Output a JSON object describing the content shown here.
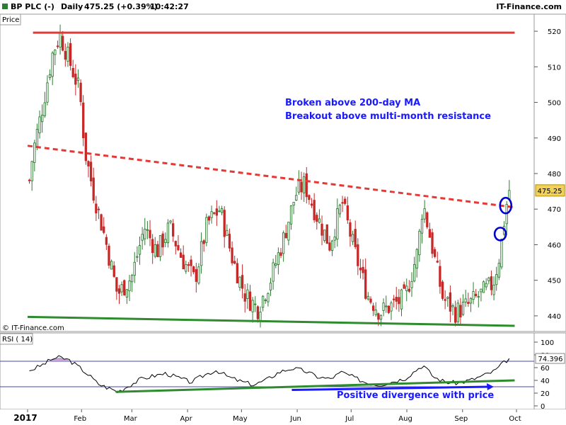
{
  "header": {
    "symbol": "BP PLC (-)",
    "period": "Daily",
    "quote": "475.25 (+0.39%)",
    "time": "10:42:27",
    "brand": "IT-Finance.com"
  },
  "colors": {
    "up_candle": "#2e7d32",
    "down_candle": "#c62828",
    "resistance_line": "#e53935",
    "support_line": "#2e8b2e",
    "annotation_text": "#1a1aff",
    "rsi_line": "#000000",
    "rsi_overbought_fill": "#c4a3d2"
  },
  "chart_data": [
    {
      "type": "candlestick",
      "title": "Price",
      "watermark": "© IT-Finance.com",
      "current_price_label": "475.25",
      "ylim": [
        436,
        524
      ],
      "yticks": [
        440,
        450,
        460,
        470,
        480,
        490,
        500,
        510,
        520
      ],
      "x_month_labels": [
        "2017",
        "Feb",
        "Mar",
        "Apr",
        "May",
        "Jun",
        "Jul",
        "Aug",
        "Sep",
        "Oct"
      ],
      "series_close_approx": [
        {
          "x": "2017-01-03",
          "y": 478
        },
        {
          "x": "2017-01-05",
          "y": 486
        },
        {
          "x": "2017-01-10",
          "y": 498
        },
        {
          "x": "2017-01-16",
          "y": 514
        },
        {
          "x": "2017-01-20",
          "y": 519
        },
        {
          "x": "2017-01-25",
          "y": 512
        },
        {
          "x": "2017-01-31",
          "y": 503
        },
        {
          "x": "2017-02-03",
          "y": 486
        },
        {
          "x": "2017-02-08",
          "y": 474
        },
        {
          "x": "2017-02-14",
          "y": 462
        },
        {
          "x": "2017-02-21",
          "y": 446
        },
        {
          "x": "2017-03-01",
          "y": 451
        },
        {
          "x": "2017-03-08",
          "y": 465
        },
        {
          "x": "2017-03-15",
          "y": 458
        },
        {
          "x": "2017-03-22",
          "y": 465
        },
        {
          "x": "2017-03-29",
          "y": 456
        },
        {
          "x": "2017-04-05",
          "y": 450
        },
        {
          "x": "2017-04-12",
          "y": 466
        },
        {
          "x": "2017-04-19",
          "y": 470
        },
        {
          "x": "2017-04-26",
          "y": 456
        },
        {
          "x": "2017-05-03",
          "y": 446
        },
        {
          "x": "2017-05-10",
          "y": 442
        },
        {
          "x": "2017-05-17",
          "y": 450
        },
        {
          "x": "2017-05-24",
          "y": 461
        },
        {
          "x": "2017-05-31",
          "y": 474
        },
        {
          "x": "2017-06-05",
          "y": 477
        },
        {
          "x": "2017-06-12",
          "y": 468
        },
        {
          "x": "2017-06-19",
          "y": 460
        },
        {
          "x": "2017-06-26",
          "y": 472
        },
        {
          "x": "2017-07-03",
          "y": 458
        },
        {
          "x": "2017-07-10",
          "y": 446
        },
        {
          "x": "2017-07-17",
          "y": 441
        },
        {
          "x": "2017-07-24",
          "y": 443
        },
        {
          "x": "2017-07-31",
          "y": 445
        },
        {
          "x": "2017-08-07",
          "y": 458
        },
        {
          "x": "2017-08-10",
          "y": 472
        },
        {
          "x": "2017-08-14",
          "y": 462
        },
        {
          "x": "2017-08-21",
          "y": 445
        },
        {
          "x": "2017-08-28",
          "y": 441
        },
        {
          "x": "2017-09-04",
          "y": 443
        },
        {
          "x": "2017-09-11",
          "y": 446
        },
        {
          "x": "2017-09-18",
          "y": 449
        },
        {
          "x": "2017-09-22",
          "y": 458
        },
        {
          "x": "2017-09-25",
          "y": 470
        },
        {
          "x": "2017-09-27",
          "y": 475.25
        }
      ],
      "lines": [
        {
          "name": "resistance",
          "style": "solid",
          "from": {
            "x": "2017-01-05",
            "y": 519.6
          },
          "to": {
            "x": "2017-09-30",
            "y": 519.6
          }
        },
        {
          "name": "200-day MA",
          "style": "dashed",
          "from": {
            "x": "2017-01-02",
            "y": 487.8
          },
          "to": {
            "x": "2017-09-30",
            "y": 470.5
          }
        },
        {
          "name": "support",
          "style": "solid",
          "from": {
            "x": "2017-01-02",
            "y": 439.7
          },
          "to": {
            "x": "2017-09-30",
            "y": 437.2
          }
        }
      ],
      "circled_points": [
        {
          "x": "2017-09-25",
          "y": 471
        },
        {
          "x": "2017-09-22",
          "y": 463
        }
      ],
      "annotations": [
        "Broken above 200-day MA",
        "Breakout above multi-month resistance"
      ]
    },
    {
      "type": "line",
      "title": "RSI ( 14)",
      "current_value_label": "74.396",
      "ylim": [
        0,
        100
      ],
      "yticks": [
        0,
        20,
        40,
        60,
        80,
        100
      ],
      "reference_levels": [
        30,
        70
      ],
      "series": [
        {
          "values": [
            {
              "x": "2017-01-03",
              "y": 55
            },
            {
              "x": "2017-01-10",
              "y": 64
            },
            {
              "x": "2017-01-16",
              "y": 74
            },
            {
              "x": "2017-01-20",
              "y": 76
            },
            {
              "x": "2017-01-25",
              "y": 72
            },
            {
              "x": "2017-01-31",
              "y": 60
            },
            {
              "x": "2017-02-06",
              "y": 46
            },
            {
              "x": "2017-02-10",
              "y": 35
            },
            {
              "x": "2017-02-14",
              "y": 30
            },
            {
              "x": "2017-02-18",
              "y": 26
            },
            {
              "x": "2017-02-21",
              "y": 22
            },
            {
              "x": "2017-02-27",
              "y": 31
            },
            {
              "x": "2017-03-06",
              "y": 42
            },
            {
              "x": "2017-03-13",
              "y": 47
            },
            {
              "x": "2017-03-20",
              "y": 51
            },
            {
              "x": "2017-03-27",
              "y": 44
            },
            {
              "x": "2017-04-03",
              "y": 37
            },
            {
              "x": "2017-04-10",
              "y": 48
            },
            {
              "x": "2017-04-17",
              "y": 56
            },
            {
              "x": "2017-04-24",
              "y": 45
            },
            {
              "x": "2017-05-01",
              "y": 38
            },
            {
              "x": "2017-05-08",
              "y": 33
            },
            {
              "x": "2017-05-15",
              "y": 41
            },
            {
              "x": "2017-05-22",
              "y": 53
            },
            {
              "x": "2017-05-29",
              "y": 59
            },
            {
              "x": "2017-06-05",
              "y": 55
            },
            {
              "x": "2017-06-12",
              "y": 46
            },
            {
              "x": "2017-06-19",
              "y": 42
            },
            {
              "x": "2017-06-26",
              "y": 53
            },
            {
              "x": "2017-07-03",
              "y": 44
            },
            {
              "x": "2017-07-10",
              "y": 36
            },
            {
              "x": "2017-07-17",
              "y": 33
            },
            {
              "x": "2017-07-24",
              "y": 38
            },
            {
              "x": "2017-07-31",
              "y": 43
            },
            {
              "x": "2017-08-07",
              "y": 58
            },
            {
              "x": "2017-08-10",
              "y": 64
            },
            {
              "x": "2017-08-16",
              "y": 45
            },
            {
              "x": "2017-08-23",
              "y": 37
            },
            {
              "x": "2017-08-30",
              "y": 36
            },
            {
              "x": "2017-09-06",
              "y": 41
            },
            {
              "x": "2017-09-13",
              "y": 48
            },
            {
              "x": "2017-09-19",
              "y": 55
            },
            {
              "x": "2017-09-22",
              "y": 63
            },
            {
              "x": "2017-09-25",
              "y": 70
            },
            {
              "x": "2017-09-27",
              "y": 74.396
            }
          ]
        }
      ],
      "trendlines": [
        {
          "name": "rsi-trendline",
          "color": "green",
          "from": {
            "x": "2017-02-20",
            "y": 22
          },
          "to": {
            "x": "2017-09-30",
            "y": 40
          }
        },
        {
          "name": "divergence-arrow",
          "color": "blue",
          "from": {
            "x": "2017-05-29",
            "y": 25
          },
          "to": {
            "x": "2017-09-16",
            "y": 30
          }
        }
      ],
      "annotations": [
        "Positive divergence with price"
      ]
    }
  ]
}
